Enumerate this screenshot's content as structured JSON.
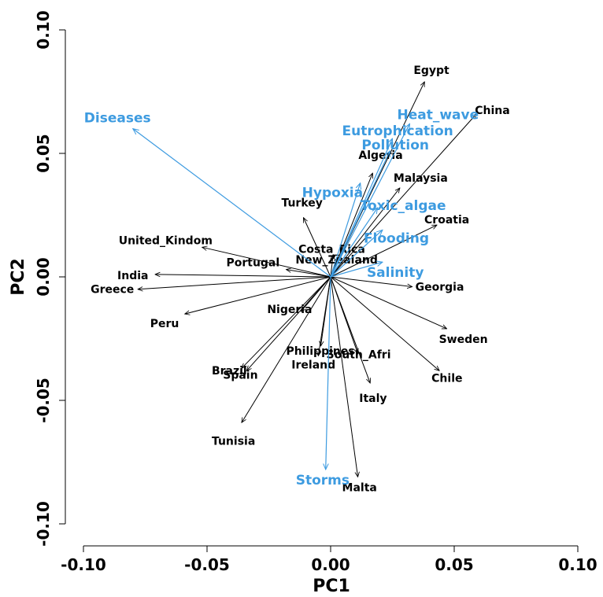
{
  "chart_data": {
    "type": "scatter",
    "xlabel": "PC1",
    "ylabel": "PC2",
    "xlim": [
      -0.11,
      0.11
    ],
    "ylim": [
      -0.108,
      0.108
    ],
    "xticks": [
      "-0.10",
      "-0.05",
      "0.00",
      "0.05",
      "0.10"
    ],
    "xtick_values": [
      -0.1,
      -0.05,
      0.0,
      0.05,
      0.1
    ],
    "yticks": [
      "-0.10",
      "-0.05",
      "0.00",
      "0.05",
      "0.10"
    ],
    "ytick_values": [
      -0.1,
      -0.05,
      0.0,
      0.05,
      0.1
    ],
    "colors": {
      "observations": "#000000",
      "variables": "#3d9be0"
    },
    "observations": [
      {
        "name": "Egypt",
        "x": 0.038,
        "y": 0.079
      },
      {
        "name": "China",
        "x": 0.059,
        "y": 0.066
      },
      {
        "name": "Algeria",
        "x": 0.017,
        "y": 0.042
      },
      {
        "name": "Malaysia",
        "x": 0.028,
        "y": 0.036
      },
      {
        "name": "Croatia",
        "x": 0.043,
        "y": 0.021
      },
      {
        "name": "Turkey",
        "x": -0.011,
        "y": 0.024
      },
      {
        "name": "Costa_Rica",
        "x": 0.001,
        "y": 0.009
      },
      {
        "name": "New_Zealand",
        "x": 0.003,
        "y": 0.008
      },
      {
        "name": "United_Kindom",
        "x": -0.052,
        "y": 0.012
      },
      {
        "name": "Portugal",
        "x": -0.018,
        "y": 0.003
      },
      {
        "name": "India",
        "x": -0.071,
        "y": 0.001
      },
      {
        "name": "Greece",
        "x": -0.078,
        "y": -0.005
      },
      {
        "name": "Peru",
        "x": -0.059,
        "y": -0.015
      },
      {
        "name": "Georgia",
        "x": 0.033,
        "y": -0.004
      },
      {
        "name": "Sweden",
        "x": 0.047,
        "y": -0.021
      },
      {
        "name": "Chile",
        "x": 0.044,
        "y": -0.038
      },
      {
        "name": "Nigeria",
        "x": -0.012,
        "y": -0.014
      },
      {
        "name": "Philippines",
        "x": -0.004,
        "y": -0.028
      },
      {
        "name": "South_Afri",
        "x": 0.011,
        "y": -0.031
      },
      {
        "name": "Ireland",
        "x": -0.005,
        "y": -0.032
      },
      {
        "name": "Italy",
        "x": 0.016,
        "y": -0.043
      },
      {
        "name": "Brazil",
        "x": -0.036,
        "y": -0.037
      },
      {
        "name": "Spain",
        "x": -0.034,
        "y": -0.038
      },
      {
        "name": "Tunisia",
        "x": -0.036,
        "y": -0.059
      },
      {
        "name": "Malta",
        "x": 0.011,
        "y": -0.081
      }
    ],
    "variables": [
      {
        "name": "Diseases",
        "x": -0.08,
        "y": 0.06
      },
      {
        "name": "Heat_wave",
        "x": 0.032,
        "y": 0.062
      },
      {
        "name": "Eutrophication",
        "x": 0.025,
        "y": 0.056
      },
      {
        "name": "Pollution",
        "x": 0.024,
        "y": 0.051
      },
      {
        "name": "Hypoxia",
        "x": 0.012,
        "y": 0.038
      },
      {
        "name": "Toxic_algae",
        "x": 0.019,
        "y": 0.028
      },
      {
        "name": "Flooding",
        "x": 0.021,
        "y": 0.019
      },
      {
        "name": "Salinity",
        "x": 0.021,
        "y": 0.006
      },
      {
        "name": "Storms",
        "x": -0.002,
        "y": -0.078
      }
    ]
  }
}
